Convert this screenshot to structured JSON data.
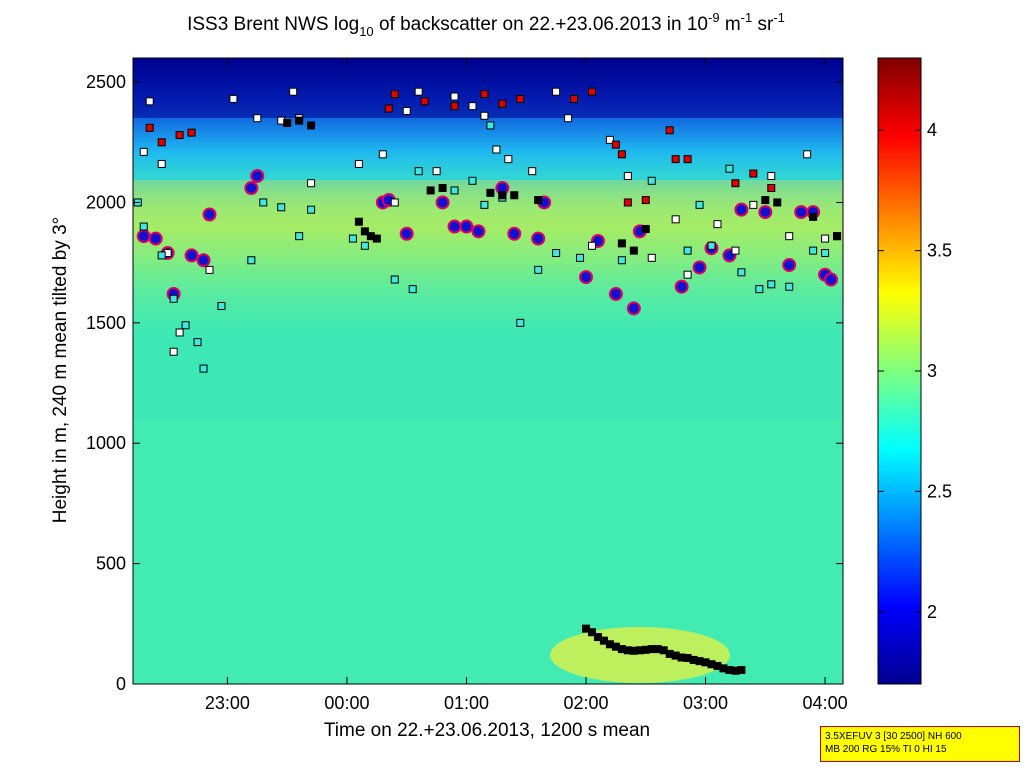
{
  "chart_data": {
    "type": "heatmap",
    "title_parts": [
      "ISS3 Brent NWS log",
      "10",
      " of backscatter on 22.+23.06.2013 in 10",
      "-9",
      " m",
      "-1",
      " sr",
      "-1"
    ],
    "xlabel": "Time on 22.+23.06.2013, 1200 s mean",
    "ylabel": "Height in m, 240 m mean tilted by 3°",
    "xlim": [
      22.21,
      28.15
    ],
    "ylim": [
      0,
      2600
    ],
    "x_ticks": [
      {
        "value": 23.0,
        "label": "23:00"
      },
      {
        "value": 24.0,
        "label": "00:00"
      },
      {
        "value": 25.0,
        "label": "01:00"
      },
      {
        "value": 26.0,
        "label": "02:00"
      },
      {
        "value": 27.0,
        "label": "03:00"
      },
      {
        "value": 28.0,
        "label": "04:00"
      }
    ],
    "y_ticks": [
      0,
      500,
      1000,
      1500,
      2000,
      2500
    ],
    "colorbar": {
      "range": [
        1.7,
        4.3
      ],
      "ticks": [
        "2",
        "2.5",
        "3",
        "3.5",
        "4"
      ]
    },
    "series": [
      {
        "name": "cloud base (purple/red)",
        "marker": "circle",
        "points": [
          [
            22.3,
            1860
          ],
          [
            22.4,
            1850
          ],
          [
            22.5,
            1790
          ],
          [
            22.55,
            1620
          ],
          [
            22.7,
            1780
          ],
          [
            22.8,
            1760
          ],
          [
            22.85,
            1950
          ],
          [
            23.2,
            2060
          ],
          [
            23.25,
            2110
          ],
          [
            24.3,
            2000
          ],
          [
            24.35,
            2010
          ],
          [
            24.5,
            1870
          ],
          [
            24.8,
            2000
          ],
          [
            24.9,
            1900
          ],
          [
            25.0,
            1900
          ],
          [
            25.1,
            1880
          ],
          [
            25.3,
            2060
          ],
          [
            25.4,
            1870
          ],
          [
            25.6,
            1850
          ],
          [
            25.65,
            2000
          ],
          [
            26.0,
            1690
          ],
          [
            26.1,
            1840
          ],
          [
            26.25,
            1620
          ],
          [
            26.4,
            1560
          ],
          [
            26.45,
            1880
          ],
          [
            26.8,
            1650
          ],
          [
            26.95,
            1730
          ],
          [
            27.05,
            1810
          ],
          [
            27.2,
            1780
          ],
          [
            27.3,
            1970
          ],
          [
            27.5,
            1960
          ],
          [
            27.7,
            1740
          ],
          [
            27.8,
            1960
          ],
          [
            27.9,
            1960
          ],
          [
            28.0,
            1700
          ],
          [
            28.05,
            1680
          ]
        ]
      },
      {
        "name": "white squares",
        "marker": "square-white",
        "points": [
          [
            22.3,
            2210
          ],
          [
            22.35,
            2420
          ],
          [
            22.45,
            2160
          ],
          [
            22.5,
            1790
          ],
          [
            22.55,
            1380
          ],
          [
            22.6,
            1460
          ],
          [
            22.85,
            1720
          ],
          [
            23.05,
            2430
          ],
          [
            23.25,
            2350
          ],
          [
            23.45,
            2340
          ],
          [
            23.55,
            2460
          ],
          [
            23.6,
            2350
          ],
          [
            23.7,
            2080
          ],
          [
            24.1,
            2160
          ],
          [
            24.3,
            2200
          ],
          [
            24.4,
            2000
          ],
          [
            24.5,
            2380
          ],
          [
            24.6,
            2460
          ],
          [
            24.75,
            2130
          ],
          [
            24.9,
            2440
          ],
          [
            25.05,
            2400
          ],
          [
            25.15,
            2360
          ],
          [
            25.25,
            2220
          ],
          [
            25.35,
            2180
          ],
          [
            25.55,
            2130
          ],
          [
            25.75,
            2460
          ],
          [
            25.85,
            2350
          ],
          [
            26.05,
            1820
          ],
          [
            26.2,
            2260
          ],
          [
            26.35,
            2110
          ],
          [
            26.55,
            1770
          ],
          [
            26.75,
            1930
          ],
          [
            26.85,
            1700
          ],
          [
            27.1,
            1910
          ],
          [
            27.25,
            1800
          ],
          [
            27.4,
            1990
          ],
          [
            27.55,
            2110
          ],
          [
            27.7,
            1860
          ],
          [
            27.85,
            2200
          ],
          [
            28.0,
            1850
          ]
        ]
      },
      {
        "name": "red squares",
        "marker": "square-red",
        "points": [
          [
            22.35,
            2310
          ],
          [
            22.45,
            2250
          ],
          [
            22.6,
            2280
          ],
          [
            22.7,
            2290
          ],
          [
            24.35,
            2390
          ],
          [
            24.4,
            2450
          ],
          [
            24.65,
            2420
          ],
          [
            24.9,
            2400
          ],
          [
            25.15,
            2450
          ],
          [
            25.3,
            2410
          ],
          [
            25.45,
            2430
          ],
          [
            25.9,
            2430
          ],
          [
            26.05,
            2460
          ],
          [
            26.25,
            2240
          ],
          [
            26.3,
            2200
          ],
          [
            26.35,
            2000
          ],
          [
            26.5,
            2010
          ],
          [
            26.7,
            2300
          ],
          [
            26.75,
            2180
          ],
          [
            26.85,
            2180
          ],
          [
            27.25,
            2080
          ],
          [
            27.4,
            2120
          ],
          [
            27.55,
            2060
          ]
        ]
      },
      {
        "name": "cyan squares",
        "marker": "square-cyan",
        "points": [
          [
            22.25,
            2000
          ],
          [
            22.3,
            1900
          ],
          [
            22.45,
            1780
          ],
          [
            22.55,
            1600
          ],
          [
            22.65,
            1490
          ],
          [
            22.75,
            1420
          ],
          [
            22.8,
            1310
          ],
          [
            22.95,
            1570
          ],
          [
            23.2,
            1760
          ],
          [
            23.45,
            1980
          ],
          [
            23.6,
            1860
          ],
          [
            23.7,
            1970
          ],
          [
            24.05,
            1850
          ],
          [
            24.15,
            1820
          ],
          [
            24.4,
            1680
          ],
          [
            24.55,
            1640
          ],
          [
            24.9,
            2050
          ],
          [
            25.05,
            2090
          ],
          [
            25.15,
            1990
          ],
          [
            25.3,
            2020
          ],
          [
            25.45,
            1500
          ],
          [
            25.6,
            1720
          ],
          [
            25.75,
            1790
          ],
          [
            25.95,
            1770
          ],
          [
            26.3,
            1760
          ],
          [
            26.55,
            2090
          ],
          [
            26.85,
            1800
          ],
          [
            27.05,
            1820
          ],
          [
            27.2,
            2140
          ],
          [
            27.3,
            1710
          ],
          [
            27.45,
            1640
          ],
          [
            27.55,
            1660
          ],
          [
            27.7,
            1650
          ],
          [
            27.9,
            1800
          ],
          [
            28.0,
            1790
          ],
          [
            28.1,
            1860
          ],
          [
            26.95,
            1990
          ],
          [
            25.2,
            2320
          ],
          [
            24.6,
            2130
          ],
          [
            23.3,
            2000
          ]
        ]
      },
      {
        "name": "black boundary layer track",
        "marker": "square-black",
        "points": [
          [
            26.0,
            230
          ],
          [
            26.05,
            215
          ],
          [
            26.1,
            195
          ],
          [
            26.15,
            180
          ],
          [
            26.2,
            165
          ],
          [
            26.25,
            155
          ],
          [
            26.3,
            145
          ],
          [
            26.35,
            140
          ],
          [
            26.4,
            138
          ],
          [
            26.45,
            140
          ],
          [
            26.5,
            142
          ],
          [
            26.55,
            145
          ],
          [
            26.6,
            145
          ],
          [
            26.65,
            140
          ],
          [
            26.7,
            125
          ],
          [
            26.75,
            118
          ],
          [
            26.8,
            110
          ],
          [
            26.85,
            108
          ],
          [
            26.9,
            100
          ],
          [
            26.95,
            95
          ],
          [
            27.0,
            90
          ],
          [
            27.05,
            82
          ],
          [
            27.1,
            75
          ],
          [
            27.15,
            65
          ],
          [
            27.2,
            58
          ],
          [
            27.25,
            55
          ],
          [
            27.3,
            58
          ],
          [
            23.5,
            2330
          ],
          [
            23.6,
            2340
          ],
          [
            23.7,
            2320
          ],
          [
            24.1,
            1920
          ],
          [
            24.15,
            1880
          ],
          [
            24.2,
            1860
          ],
          [
            24.25,
            1850
          ],
          [
            24.7,
            2050
          ],
          [
            24.8,
            2060
          ],
          [
            25.2,
            2040
          ],
          [
            25.3,
            2030
          ],
          [
            25.4,
            2030
          ],
          [
            25.6,
            2010
          ],
          [
            26.3,
            1830
          ],
          [
            26.4,
            1800
          ],
          [
            26.5,
            1890
          ],
          [
            27.5,
            2010
          ],
          [
            27.6,
            2000
          ],
          [
            27.9,
            1940
          ],
          [
            28.1,
            1860
          ]
        ]
      }
    ]
  },
  "info_box": {
    "line1": "3.5XEFUV 3 [30 2500] NH 600",
    "line2": "MB 200 RG 15% TI 0 HI 15"
  },
  "colors": {
    "low": "#00008f",
    "mid": "#39f5b4",
    "high": "#800000"
  }
}
